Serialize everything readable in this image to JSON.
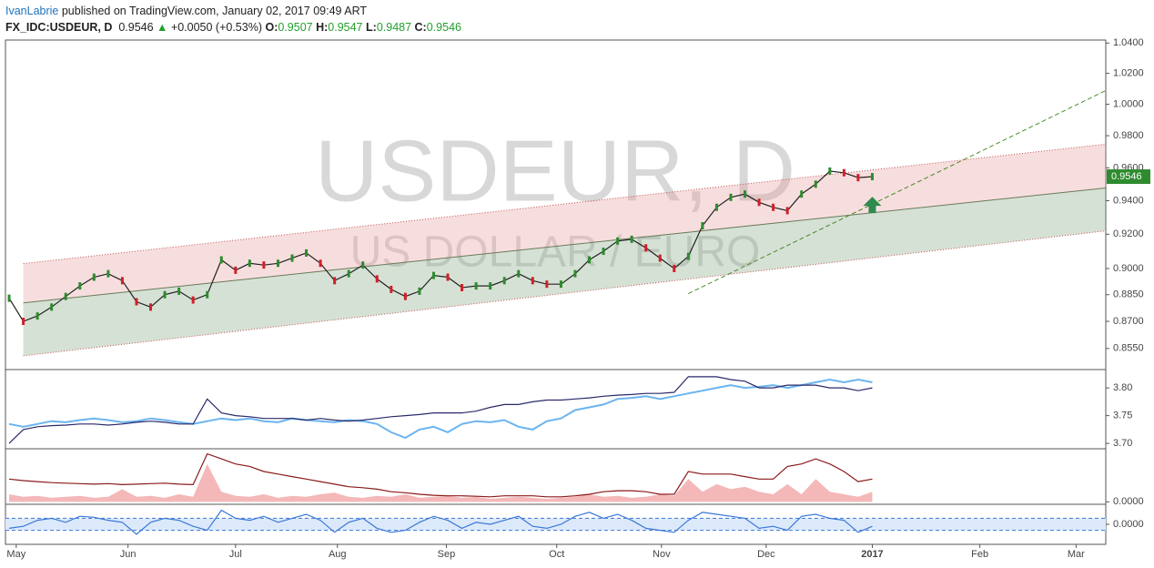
{
  "header": {
    "author": "IvanLabrie",
    "published": "published on TradingView.com, January 02, 2017 09:49 ART",
    "symbol": "FX_IDC:USDEUR, D",
    "last": "0.9546",
    "change": "+0.0050 (+0.53%)",
    "ohlc": [
      {
        "label": "O:",
        "value": "0.9507"
      },
      {
        "label": "H:",
        "value": "0.9547"
      },
      {
        "label": "L:",
        "value": "0.9487"
      },
      {
        "label": "C:",
        "value": "0.9546"
      }
    ]
  },
  "chart_data": [
    {
      "type": "price",
      "title": "USDEUR, D",
      "subtitle": "US DOLLAR / EURO",
      "log": true,
      "ylim": [
        0.844,
        1.042
      ],
      "yticks": [
        {
          "value": 1.04,
          "label": "1.0400"
        },
        {
          "value": 1.02,
          "label": "1.0200"
        },
        {
          "value": 1.0,
          "label": "1.0000"
        },
        {
          "value": 0.98,
          "label": "0.9800"
        },
        {
          "value": 0.96,
          "label": "0.9600"
        },
        {
          "value": 0.94,
          "label": "0.9400"
        },
        {
          "value": 0.92,
          "label": "0.9200"
        },
        {
          "value": 0.9,
          "label": "0.9000"
        },
        {
          "value": 0.885,
          "label": "0.8850"
        },
        {
          "value": 0.87,
          "label": "0.8700"
        },
        {
          "value": 0.855,
          "label": "0.8550"
        }
      ],
      "up_color": "#2e8b2e",
      "down_color": "#d0202a",
      "color": "#222222",
      "series": [
        {
          "values": [
            0.883,
            0.87,
            0.873,
            0.878,
            0.884,
            0.89,
            0.895,
            0.897,
            0.893,
            0.881,
            0.878,
            0.885,
            0.887,
            0.882,
            0.885,
            0.905,
            0.899,
            0.903,
            0.902,
            0.903,
            0.906,
            0.909,
            0.903,
            0.893,
            0.897,
            0.902,
            0.894,
            0.888,
            0.884,
            0.887,
            0.896,
            0.895,
            0.889,
            0.89,
            0.89,
            0.893,
            0.897,
            0.893,
            0.891,
            0.891,
            0.897,
            0.905,
            0.91,
            0.916,
            0.917,
            0.912,
            0.906,
            0.9,
            0.907,
            0.925,
            0.936,
            0.942,
            0.944,
            0.939,
            0.936,
            0.934,
            0.944,
            0.95,
            0.958,
            0.957,
            0.954,
            0.9546
          ]
        }
      ],
      "lines": [
        {
          "x": [
            1.0,
            77.5
          ],
          "values": [
            0.9028,
            0.9747
          ],
          "color": "#c0504d",
          "style": "dotted"
        },
        {
          "x": [
            1.0,
            77.5
          ],
          "values": [
            0.8804,
            0.9477
          ],
          "color": "#6a7a5a",
          "style": "solid"
        },
        {
          "x": [
            1.0,
            77.5
          ],
          "values": [
            0.851,
            0.922
          ],
          "color": "#c0504d",
          "style": "dotted"
        },
        {
          "x": [
            48.0,
            77.5
          ],
          "values": [
            0.8856,
            1.0088
          ],
          "color": "#4a8a2a",
          "style": "dashed"
        }
      ]
    },
    {
      "type": "line",
      "ylim": [
        3.692,
        3.833
      ],
      "yticks": [
        {
          "value": 3.8,
          "label": "3.80"
        },
        3.75,
        {
          "value": 3.7,
          "label": "3.70"
        }
      ],
      "series": [
        {
          "color": "#6ab4f0",
          "values": [
            3.735,
            3.73,
            3.735,
            3.74,
            3.738,
            3.742,
            3.745,
            3.742,
            3.738,
            3.74,
            3.745,
            3.742,
            3.738,
            3.735,
            3.74,
            3.745,
            3.742,
            3.745,
            3.74,
            3.738,
            3.745,
            3.742,
            3.74,
            3.738,
            3.742,
            3.74,
            3.735,
            3.72,
            3.71,
            3.725,
            3.73,
            3.72,
            3.735,
            3.74,
            3.738,
            3.742,
            3.73,
            3.725,
            3.74,
            3.745,
            3.76,
            3.765,
            3.77,
            3.78,
            3.782,
            3.785,
            3.78,
            3.785,
            3.79,
            3.795,
            3.8,
            3.805,
            3.8,
            3.802,
            3.805,
            3.8,
            3.805,
            3.81,
            3.815,
            3.81,
            3.815,
            3.81
          ]
        },
        {
          "color": "#2a2a6a",
          "values": [
            3.7,
            3.725,
            3.73,
            3.732,
            3.733,
            3.735,
            3.735,
            3.733,
            3.735,
            3.738,
            3.74,
            3.738,
            3.735,
            3.735,
            3.78,
            3.755,
            3.75,
            3.748,
            3.745,
            3.745,
            3.745,
            3.742,
            3.745,
            3.742,
            3.74,
            3.742,
            3.745,
            3.748,
            3.75,
            3.752,
            3.755,
            3.755,
            3.755,
            3.758,
            3.765,
            3.77,
            3.77,
            3.775,
            3.778,
            3.778,
            3.78,
            3.782,
            3.785,
            3.787,
            3.788,
            3.79,
            3.79,
            3.792,
            3.82,
            3.82,
            3.82,
            3.815,
            3.812,
            3.8,
            3.8,
            3.805,
            3.805,
            3.805,
            3.8,
            3.8,
            3.795,
            3.8
          ]
        }
      ]
    },
    {
      "type": "line",
      "ylim": [
        -0.0003,
        0.0105
      ],
      "yticks": [
        {
          "value": 0,
          "label": "0.0000"
        }
      ],
      "series": [
        {
          "color": "#f4b8b8",
          "area": true,
          "values": [
            0.0015,
            0.001,
            0.0012,
            0.0008,
            0.001,
            0.0012,
            0.0008,
            0.001,
            0.0025,
            0.001,
            0.0012,
            0.0008,
            0.0015,
            0.001,
            0.0075,
            0.002,
            0.0012,
            0.001,
            0.0015,
            0.0008,
            0.0012,
            0.001,
            0.0015,
            0.0018,
            0.001,
            0.0008,
            0.0012,
            0.001,
            0.0015,
            0.0008,
            0.001,
            0.0012,
            0.0008,
            0.001,
            0.0006,
            0.0008,
            0.001,
            0.0008,
            0.0006,
            0.0008,
            0.001,
            0.0015,
            0.001,
            0.0012,
            0.0008,
            0.001,
            0.0015,
            0.0012,
            0.0045,
            0.002,
            0.0035,
            0.0025,
            0.003,
            0.002,
            0.0015,
            0.0035,
            0.0015,
            0.0045,
            0.002,
            0.0015,
            0.001,
            0.002
          ]
        },
        {
          "color": "#8b1a1a",
          "values": [
            0.0045,
            0.0042,
            0.004,
            0.0038,
            0.0037,
            0.0036,
            0.0035,
            0.0036,
            0.0034,
            0.0035,
            0.0036,
            0.0037,
            0.0035,
            0.0034,
            0.0095,
            0.0085,
            0.0075,
            0.007,
            0.006,
            0.0055,
            0.005,
            0.0045,
            0.004,
            0.0035,
            0.003,
            0.0028,
            0.0025,
            0.002,
            0.0018,
            0.0015,
            0.0013,
            0.0012,
            0.0012,
            0.0011,
            0.001,
            0.0012,
            0.0012,
            0.0012,
            0.001,
            0.001,
            0.0012,
            0.0015,
            0.002,
            0.0022,
            0.0022,
            0.002,
            0.0015,
            0.0015,
            0.006,
            0.0055,
            0.0055,
            0.0055,
            0.005,
            0.0045,
            0.0045,
            0.007,
            0.0075,
            0.0085,
            0.0075,
            0.006,
            0.004,
            0.0045
          ]
        }
      ]
    },
    {
      "type": "line",
      "ylim": [
        -1,
        1
      ],
      "yticks": [
        {
          "value": 0,
          "label": "0.0000"
        }
      ],
      "band": [
        -0.3,
        0.3
      ],
      "xlim": [
        -0.26,
        77.5
      ],
      "xticks": [
        {
          "value": 0.5,
          "label": "May"
        },
        {
          "value": 8.4,
          "label": "Jun"
        },
        {
          "value": 16.0,
          "label": "Jul"
        },
        {
          "value": 23.2,
          "label": "Aug"
        },
        {
          "value": 30.9,
          "label": "Sep"
        },
        {
          "value": 38.7,
          "label": "Oct"
        },
        {
          "value": 46.1,
          "label": "Nov"
        },
        {
          "value": 53.5,
          "label": "Dec"
        },
        {
          "value": 61.0,
          "label": "2017"
        },
        {
          "value": 68.6,
          "label": "Feb"
        },
        {
          "value": 75.4,
          "label": "Mar"
        }
      ],
      "series": [
        {
          "color": "#3a78d8",
          "values": [
            -0.2,
            -0.1,
            0.2,
            0.3,
            0.1,
            0.4,
            0.35,
            0.2,
            0.1,
            -0.5,
            0.1,
            0.3,
            0.2,
            -0.1,
            -0.3,
            0.7,
            0.3,
            0.2,
            0.4,
            0.1,
            0.3,
            0.5,
            0.2,
            -0.4,
            0.1,
            0.3,
            -0.2,
            -0.4,
            -0.3,
            0.1,
            0.4,
            0.2,
            -0.2,
            0.1,
            0.0,
            0.2,
            0.4,
            -0.1,
            -0.2,
            0.0,
            0.4,
            0.6,
            0.3,
            0.5,
            0.2,
            -0.2,
            -0.3,
            -0.4,
            0.2,
            0.6,
            0.5,
            0.4,
            0.3,
            -0.2,
            -0.1,
            -0.3,
            0.4,
            0.5,
            0.3,
            0.2,
            -0.4,
            -0.1
          ]
        }
      ]
    }
  ]
}
